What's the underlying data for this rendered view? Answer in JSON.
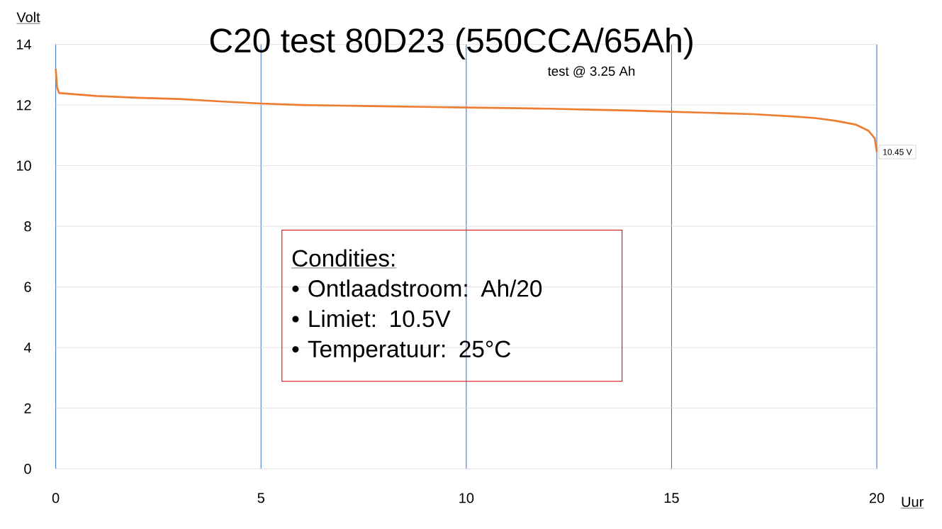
{
  "chart_data": {
    "type": "line",
    "title": "C20 test 80D23 (550CCA/65Ah)",
    "xlabel": "Uur",
    "ylabel": "Volt",
    "x": [
      0,
      0.03,
      0.08,
      0.5,
      1,
      2,
      3,
      4,
      5,
      6,
      7,
      8,
      9,
      10,
      11,
      12,
      13,
      14,
      15,
      16,
      17,
      18,
      18.5,
      19,
      19.5,
      19.8,
      19.95,
      20
    ],
    "values": [
      13.2,
      12.6,
      12.4,
      12.35,
      12.3,
      12.24,
      12.2,
      12.12,
      12.05,
      12.0,
      11.98,
      11.96,
      11.94,
      11.92,
      11.9,
      11.88,
      11.85,
      11.82,
      11.78,
      11.74,
      11.7,
      11.62,
      11.57,
      11.48,
      11.35,
      11.15,
      10.9,
      10.45
    ],
    "color": "#ed7d31",
    "xlim": [
      0,
      20
    ],
    "ylim": [
      0,
      14
    ],
    "xticks": [
      0,
      5,
      10,
      15,
      20
    ],
    "yticks": [
      0,
      2,
      4,
      6,
      8,
      10,
      12,
      14
    ],
    "grid": true,
    "annotations": [
      "test @ 3.25 Ah",
      {
        "text": "10.45 V",
        "x": 20,
        "y": 10.45
      },
      "Condities:",
      "• Ontlaadstroom: Ah/20",
      "• Limiet: 10.5V",
      "• Temperatuur: 25°C"
    ]
  }
}
